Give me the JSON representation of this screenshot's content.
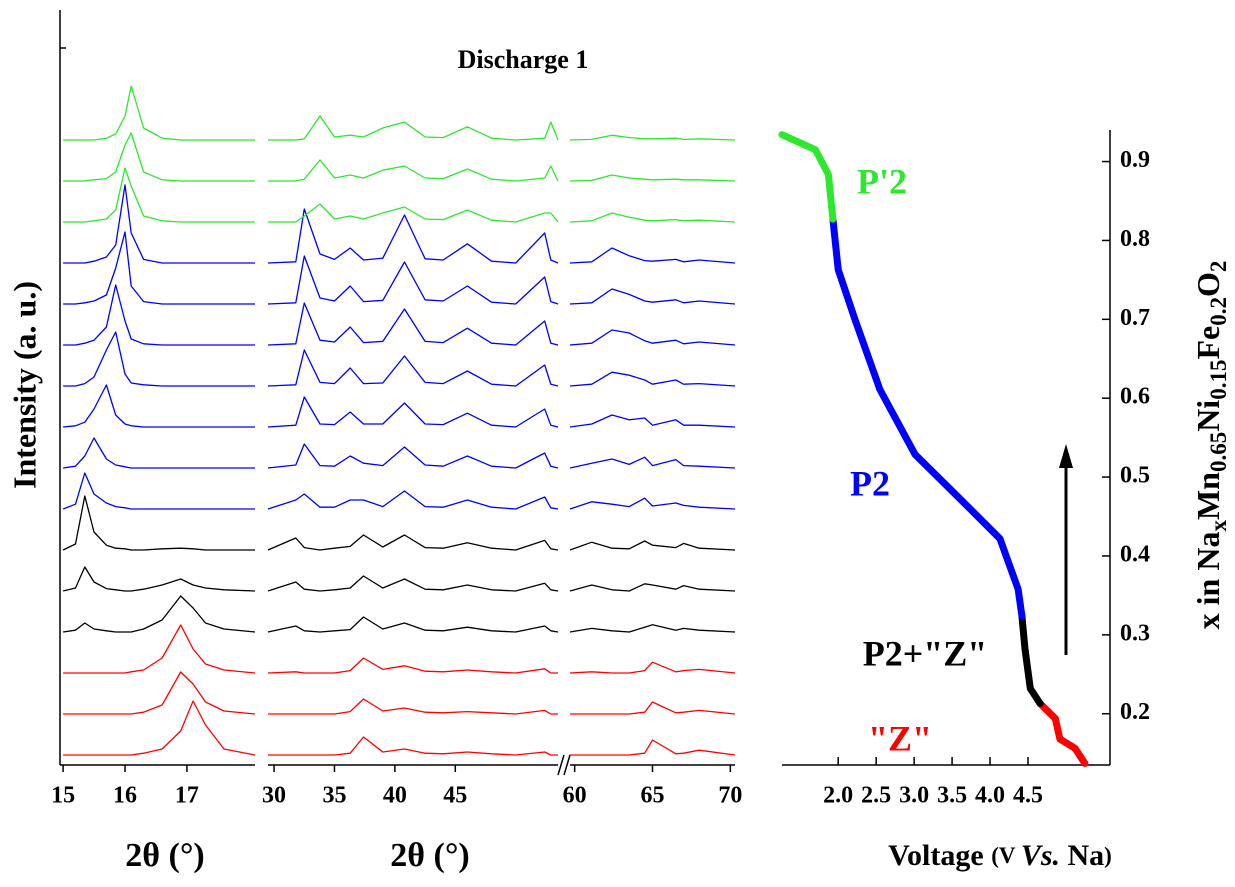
{
  "chart_data": [
    {
      "type": "waterfall",
      "ylabel": "Intensity (a. u.)",
      "xlabel": "2θ (°)",
      "xlim": [
        14.95,
        18.1
      ],
      "xticks": [
        15,
        16,
        17
      ],
      "x": [
        15,
        15.2,
        15.35,
        15.5,
        15.7,
        15.85,
        16,
        16.1,
        16.3,
        16.6,
        16.9,
        17.1,
        17.3,
        17.6,
        18.1
      ],
      "series": [
        {
          "color": "#ff0000",
          "values": [
            0,
            0,
            0,
            0,
            0,
            0,
            0,
            0,
            0.3,
            1,
            4,
            9,
            5,
            1,
            0
          ]
        },
        {
          "color": "#ff0000",
          "values": [
            0,
            0,
            0,
            0,
            0,
            0,
            0,
            0,
            0.3,
            1.5,
            7,
            5,
            2,
            0.5,
            0
          ]
        },
        {
          "color": "#ff0000",
          "values": [
            0,
            0,
            0,
            0,
            0,
            0,
            0,
            0.2,
            0.5,
            2.5,
            8,
            4,
            1.5,
            0.5,
            0
          ]
        },
        {
          "color": "#000000",
          "values": [
            0,
            0.3,
            1.5,
            0.5,
            0.2,
            0,
            0,
            0,
            0.5,
            2,
            6,
            4,
            1.5,
            0.5,
            0
          ]
        },
        {
          "color": "#000000",
          "values": [
            0,
            0.5,
            4,
            1.5,
            0.4,
            0.2,
            0,
            0,
            0.3,
            1,
            2,
            1,
            0.5,
            0.2,
            0
          ]
        },
        {
          "color": "#000000",
          "values": [
            0,
            1,
            9,
            3,
            0.8,
            0.3,
            0.2,
            0,
            0,
            0.2,
            0.3,
            0.2,
            0,
            0,
            0
          ]
        },
        {
          "color": "#0000ff",
          "values": [
            0,
            0.8,
            6,
            2.5,
            1,
            0.4,
            0.2,
            0,
            0,
            0,
            0,
            0,
            0,
            0,
            0
          ]
        },
        {
          "color": "#0000ff",
          "values": [
            0,
            0.3,
            2,
            5,
            1.5,
            0.5,
            0.2,
            0,
            0,
            0,
            0,
            0,
            0,
            0,
            0
          ]
        },
        {
          "color": "#0000ff",
          "values": [
            0,
            0.2,
            0.8,
            3,
            7,
            2,
            0.5,
            0.2,
            0,
            0,
            0,
            0,
            0,
            0,
            0
          ]
        },
        {
          "color": "#0000ff",
          "values": [
            0,
            0,
            0.4,
            1.5,
            6,
            9,
            2,
            0.5,
            0.2,
            0,
            0,
            0,
            0,
            0,
            0
          ]
        },
        {
          "color": "#0000ff",
          "values": [
            0,
            0,
            0.3,
            0.8,
            3,
            10,
            4,
            1,
            0.2,
            0,
            0,
            0,
            0,
            0,
            0
          ]
        },
        {
          "color": "#0000ff",
          "values": [
            0,
            0,
            0.2,
            0.5,
            1.5,
            6,
            12,
            3,
            0.4,
            0,
            0,
            0,
            0,
            0,
            0
          ]
        },
        {
          "color": "#0000ff",
          "values": [
            0,
            0,
            0,
            0.3,
            1,
            3,
            13,
            5,
            0.6,
            0,
            0,
            0,
            0,
            0,
            0
          ]
        },
        {
          "color": "#2ee82e",
          "values": [
            0,
            0,
            0,
            0.2,
            0.5,
            2,
            9,
            6,
            1,
            0.2,
            0,
            0,
            0,
            0,
            0
          ]
        },
        {
          "color": "#2ee82e",
          "values": [
            0,
            0,
            0,
            0.2,
            0.4,
            1.5,
            6,
            8,
            1.5,
            0.2,
            0,
            0,
            0,
            0,
            0
          ]
        },
        {
          "color": "#2ee82e",
          "values": [
            0,
            0,
            0,
            0,
            0.3,
            1,
            4,
            9,
            2,
            0.3,
            0,
            0,
            0,
            0,
            0
          ]
        }
      ]
    },
    {
      "type": "waterfall",
      "title": "Discharge 1",
      "xlabel": "2θ (°)",
      "xlim": [
        29.5,
        53.5
      ],
      "xticks": [
        30,
        35,
        40,
        45
      ],
      "x": [
        29.5,
        31.8,
        32.5,
        33.8,
        35,
        36.3,
        37.4,
        39,
        40.8,
        42.5,
        44,
        46,
        48,
        50,
        52.4,
        52.9,
        53.5
      ],
      "series": [
        {
          "color": "#ff0000",
          "values": [
            0,
            0,
            0,
            0,
            0,
            0.3,
            3,
            0.5,
            1,
            0.3,
            0.2,
            0.5,
            0.2,
            0,
            0.5,
            0,
            0
          ]
        },
        {
          "color": "#ff0000",
          "values": [
            0,
            0,
            0,
            0,
            0,
            0.4,
            2.5,
            0.5,
            1,
            0.3,
            0.2,
            0.4,
            0.2,
            0,
            0.6,
            0,
            0
          ]
        },
        {
          "color": "#ff0000",
          "values": [
            0,
            0.2,
            0,
            0,
            0,
            0.4,
            2.5,
            0.6,
            1.2,
            0.3,
            0.2,
            0.5,
            0.2,
            0,
            0.7,
            0,
            0
          ]
        },
        {
          "color": "#000000",
          "values": [
            0,
            1,
            0.2,
            0,
            0.2,
            0.4,
            2.5,
            0.5,
            1.5,
            0.3,
            0.2,
            0.8,
            0.2,
            0,
            1,
            0.2,
            0
          ]
        },
        {
          "color": "#000000",
          "values": [
            0,
            1.5,
            0.3,
            0,
            0.2,
            0.5,
            2.5,
            0.5,
            2,
            0.3,
            0.2,
            1,
            0.2,
            0,
            1.3,
            0.2,
            0
          ]
        },
        {
          "color": "#000000",
          "values": [
            0,
            2,
            0.4,
            0,
            0.3,
            0.6,
            2.5,
            0.5,
            2.5,
            0.4,
            0.3,
            1.2,
            0.3,
            0,
            1.6,
            0.2,
            0
          ]
        },
        {
          "color": "#0000ff",
          "values": [
            0,
            1.5,
            2.5,
            0.3,
            0.3,
            1.5,
            1.5,
            0.4,
            3,
            0.4,
            0.3,
            1.5,
            0.3,
            0,
            2,
            0.2,
            0
          ]
        },
        {
          "color": "#0000ff",
          "values": [
            0,
            0.5,
            4,
            0.4,
            0.3,
            2,
            0.8,
            0.4,
            3.5,
            0.5,
            0.3,
            2,
            0.3,
            0,
            2.5,
            0.3,
            0
          ]
        },
        {
          "color": "#0000ff",
          "values": [
            0,
            0.3,
            5,
            0.5,
            0.4,
            2.5,
            0.5,
            0.5,
            4,
            0.5,
            0.4,
            2.3,
            0.3,
            0,
            3,
            0.3,
            0
          ]
        },
        {
          "color": "#0000ff",
          "values": [
            0,
            0.2,
            6,
            0.6,
            0.4,
            3,
            0.4,
            0.5,
            5,
            0.6,
            0.4,
            2.5,
            0.3,
            0,
            3.5,
            0.3,
            0
          ]
        },
        {
          "color": "#0000ff",
          "values": [
            0,
            0.2,
            7,
            0.8,
            0.5,
            3,
            0.4,
            0.6,
            6,
            0.6,
            0.4,
            2.8,
            0.3,
            0,
            4,
            0.3,
            0
          ]
        },
        {
          "color": "#0000ff",
          "values": [
            0,
            0.2,
            8,
            1,
            0.5,
            3,
            0.4,
            0.6,
            7,
            0.7,
            0.5,
            3,
            0.3,
            0,
            4.5,
            0.4,
            0
          ]
        },
        {
          "color": "#0000ff",
          "values": [
            0,
            0.2,
            9,
            1.5,
            0.6,
            2.5,
            0.5,
            0.8,
            8,
            0.7,
            0.5,
            3.2,
            0.3,
            0,
            5,
            0.5,
            0
          ]
        },
        {
          "color": "#2ee82e",
          "values": [
            0,
            0,
            1,
            3,
            0.5,
            1,
            0.5,
            1.5,
            2.5,
            0.5,
            0.4,
            2,
            0.3,
            0,
            1.5,
            1.5,
            0
          ]
        },
        {
          "color": "#2ee82e",
          "values": [
            0,
            0,
            0.3,
            3.5,
            0.5,
            1,
            0.5,
            1.8,
            2.5,
            0.5,
            0.4,
            2,
            0.3,
            0,
            0.5,
            2.5,
            0
          ]
        },
        {
          "color": "#2ee82e",
          "values": [
            0,
            0,
            0.2,
            4,
            0.5,
            0.8,
            0.5,
            2,
            3,
            0.5,
            0.4,
            2.2,
            0.3,
            0,
            0.3,
            3,
            0
          ]
        }
      ]
    },
    {
      "type": "waterfall",
      "xlim": [
        59.7,
        70.3
      ],
      "xticks": [
        60,
        65,
        70
      ],
      "x": [
        59.7,
        61.1,
        62.4,
        63.5,
        64.5,
        65,
        66.5,
        67,
        68,
        70.3
      ],
      "series": [
        {
          "color": "#ff0000",
          "values": [
            0,
            0,
            0,
            0,
            0.3,
            2.5,
            0.2,
            0.3,
            0.8,
            0
          ]
        },
        {
          "color": "#ff0000",
          "values": [
            0,
            0,
            0,
            0,
            0.3,
            2,
            0.2,
            0.3,
            0.6,
            0
          ]
        },
        {
          "color": "#ff0000",
          "values": [
            0,
            0.2,
            0,
            0,
            0.4,
            1.8,
            0.2,
            0.4,
            0.6,
            0
          ]
        },
        {
          "color": "#000000",
          "values": [
            0,
            0.6,
            0.2,
            0,
            0.8,
            1.2,
            0.3,
            0.6,
            0.3,
            0
          ]
        },
        {
          "color": "#000000",
          "values": [
            0,
            1,
            0.2,
            0,
            1.2,
            1,
            0.3,
            0.9,
            0.3,
            0
          ]
        },
        {
          "color": "#000000",
          "values": [
            0,
            1.3,
            0.3,
            0.2,
            1.5,
            0.8,
            0.4,
            1.1,
            0.3,
            0
          ]
        },
        {
          "color": "#0000ff",
          "values": [
            0,
            1.2,
            0.8,
            0.4,
            1.8,
            0.5,
            1,
            0.6,
            0.3,
            0
          ]
        },
        {
          "color": "#0000ff",
          "values": [
            0,
            0.8,
            1.5,
            0.6,
            1.8,
            0.4,
            1.4,
            0.4,
            0.3,
            0
          ]
        },
        {
          "color": "#0000ff",
          "values": [
            0,
            0.5,
            2,
            1.2,
            1.5,
            0.3,
            1.2,
            0.3,
            0.3,
            0
          ]
        },
        {
          "color": "#0000ff",
          "values": [
            0,
            0.3,
            2.3,
            1.8,
            1,
            0.3,
            1,
            0.3,
            0.4,
            0
          ]
        },
        {
          "color": "#0000ff",
          "values": [
            0,
            0.3,
            2.5,
            2,
            0.7,
            0.3,
            0.8,
            0.2,
            0.5,
            0
          ]
        },
        {
          "color": "#0000ff",
          "values": [
            0,
            0.2,
            2.5,
            1.6,
            0.5,
            0.3,
            0.7,
            0.2,
            0.5,
            0
          ]
        },
        {
          "color": "#0000ff",
          "values": [
            0,
            0.2,
            2.5,
            1.2,
            0.4,
            0.3,
            0.6,
            0.2,
            0.5,
            0
          ]
        },
        {
          "color": "#2ee82e",
          "values": [
            0,
            0.2,
            1.5,
            0.8,
            0.3,
            0.2,
            0.4,
            0.2,
            0.3,
            0
          ]
        },
        {
          "color": "#2ee82e",
          "values": [
            0,
            0.1,
            1,
            0.5,
            0.3,
            0.2,
            0.3,
            0.2,
            0.2,
            0
          ]
        },
        {
          "color": "#2ee82e",
          "values": [
            0,
            0.1,
            0.8,
            0.4,
            0.2,
            0.2,
            0.3,
            0.1,
            0.2,
            0
          ]
        }
      ]
    },
    {
      "type": "line",
      "xlabel": [
        "Voltage ",
        "(V ",
        "Vs.",
        " Na",
        ")"
      ],
      "ylabel": [
        "x in Na",
        "x",
        "Mn",
        "0.65",
        "Ni",
        "0.15",
        "Fe",
        "0.2",
        "O",
        "2"
      ],
      "xlim": [
        1.26,
        5.58
      ],
      "ylim": [
        0.135,
        0.94
      ],
      "xticks": [
        {
          "value": 2,
          "label": "2.0"
        },
        2.5,
        {
          "value": 3,
          "label": "3.0"
        },
        3.5,
        {
          "value": 4,
          "label": "4.0"
        },
        4.5
      ],
      "yticks": [
        0.2,
        0.3,
        0.4,
        0.5,
        0.6,
        0.7,
        0.8,
        0.9
      ],
      "series": [
        {
          "name": "\"Z\"",
          "color": "#ff0000",
          "x": [
            4.66,
            4.86,
            4.92,
            5.12,
            5.25
          ],
          "values": [
            0.213,
            0.194,
            0.168,
            0.156,
            0.137
          ]
        },
        {
          "name": "P2+\"Z\"",
          "color": "#000000",
          "x": [
            4.42,
            4.46,
            4.53,
            4.66
          ],
          "values": [
            0.324,
            0.282,
            0.232,
            0.213
          ]
        },
        {
          "name": "P2",
          "color": "#0000ff",
          "x": [
            1.93,
            2.0,
            2.22,
            2.55,
            3.01,
            3.61,
            4.13,
            4.37,
            4.42
          ],
          "values": [
            0.827,
            0.763,
            0.7,
            0.611,
            0.529,
            0.472,
            0.422,
            0.358,
            0.324
          ]
        },
        {
          "name": "P'2",
          "color": "#2ee82e",
          "x": [
            1.26,
            1.7,
            1.87,
            1.93
          ],
          "values": [
            0.934,
            0.915,
            0.884,
            0.827
          ]
        }
      ]
    }
  ]
}
